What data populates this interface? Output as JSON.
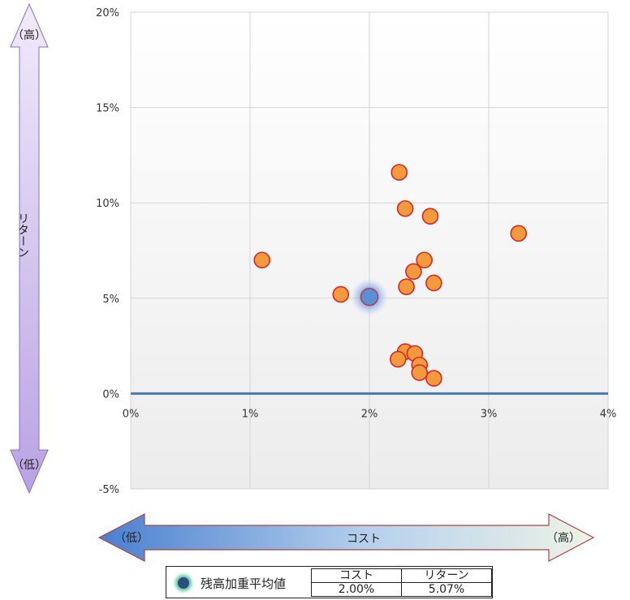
{
  "chart_data": {
    "type": "scatter",
    "xlim": [
      0,
      4
    ],
    "ylim": [
      -5,
      20
    ],
    "x_ticks": [
      "0%",
      "1%",
      "2%",
      "3%",
      "4%"
    ],
    "y_ticks": [
      "-5%",
      "0%",
      "5%",
      "10%",
      "15%",
      "20%"
    ],
    "grid": true,
    "series": [
      {
        "color": "#f39a3c",
        "points": [
          {
            "x": 1.1,
            "y": 7.0
          },
          {
            "x": 1.76,
            "y": 5.2
          },
          {
            "x": 2.25,
            "y": 11.6
          },
          {
            "x": 2.3,
            "y": 9.7
          },
          {
            "x": 2.51,
            "y": 9.3
          },
          {
            "x": 3.25,
            "y": 8.4
          },
          {
            "x": 2.46,
            "y": 7.0
          },
          {
            "x": 2.37,
            "y": 6.4
          },
          {
            "x": 2.31,
            "y": 5.6
          },
          {
            "x": 2.54,
            "y": 5.8
          },
          {
            "x": 2.3,
            "y": 2.2
          },
          {
            "x": 2.24,
            "y": 1.8
          },
          {
            "x": 2.38,
            "y": 2.1
          },
          {
            "x": 2.42,
            "y": 1.5
          },
          {
            "x": 2.42,
            "y": 1.1
          },
          {
            "x": 2.54,
            "y": 0.8
          }
        ]
      },
      {
        "name": "残高加重平均値",
        "color": "#5b8fd6",
        "points": [
          {
            "x": 2.0,
            "y": 5.07
          }
        ]
      }
    ]
  },
  "y_arrow": {
    "label": "リターン",
    "top": "（高）",
    "bottom": "（低）",
    "color": "#c8b5ea"
  },
  "x_arrow": {
    "label": "コスト",
    "left": "（低）",
    "right": "（高）"
  },
  "legend": {
    "name": "残高加重平均値",
    "headers": [
      "コスト",
      "リターン"
    ],
    "values": [
      "2.00%",
      "5.07%"
    ]
  }
}
